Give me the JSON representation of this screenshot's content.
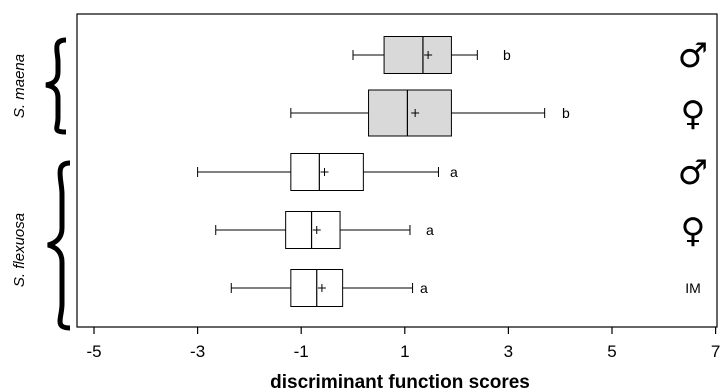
{
  "chart_data": {
    "type": "boxplot",
    "orientation": "horizontal",
    "xlabel": "discriminant function scores",
    "xlim": [
      -5.5,
      7
    ],
    "xticks": [
      -5,
      -3,
      -1,
      1,
      3,
      5,
      7
    ],
    "xtick_labels": [
      "-5",
      "-3",
      "-1",
      "1",
      "3",
      "5",
      "7"
    ],
    "groups": [
      {
        "label": "S. maena",
        "rows": [
          0,
          1
        ]
      },
      {
        "label": "S. flexuosa",
        "rows": [
          2,
          3,
          4
        ]
      }
    ],
    "series": [
      {
        "tag": "♂",
        "min": 0.0,
        "q1": 0.6,
        "median": 1.35,
        "mean": 1.45,
        "q3": 1.9,
        "max": 2.4,
        "letter": "b",
        "fill": "#d9d9d9"
      },
      {
        "tag": "♀",
        "min": -1.2,
        "q1": 0.3,
        "median": 1.05,
        "mean": 1.2,
        "q3": 1.9,
        "max": 3.7,
        "letter": "b",
        "fill": "#d9d9d9"
      },
      {
        "tag": "♂",
        "min": -3.0,
        "q1": -1.2,
        "median": -0.65,
        "mean": -0.55,
        "q3": 0.2,
        "max": 1.65,
        "letter": "a",
        "fill": "#ffffff"
      },
      {
        "tag": "♀",
        "min": -2.65,
        "q1": -1.3,
        "median": -0.8,
        "mean": -0.7,
        "q3": -0.25,
        "max": 1.1,
        "letter": "a",
        "fill": "#ffffff"
      },
      {
        "tag": "IM",
        "min": -2.35,
        "q1": -1.2,
        "median": -0.7,
        "mean": -0.6,
        "q3": -0.2,
        "max": 1.15,
        "letter": "a",
        "fill": "#ffffff"
      }
    ]
  }
}
